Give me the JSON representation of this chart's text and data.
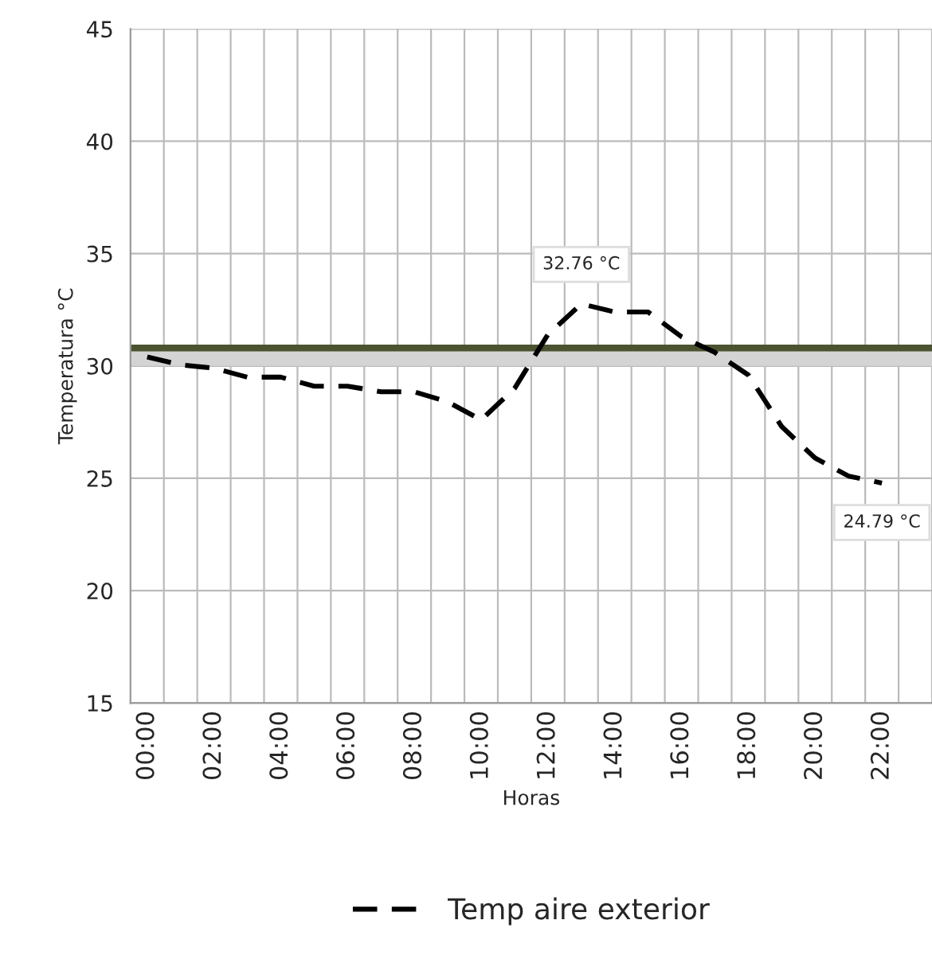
{
  "chart_data": {
    "type": "line",
    "xlabel": "Horas",
    "ylabel": "Temperatura °C",
    "categories": [
      "00:00",
      null,
      "02:00",
      null,
      "04:00",
      null,
      "06:00",
      null,
      "08:00",
      null,
      "10:00",
      null,
      "12:00",
      null,
      "14:00",
      null,
      "16:00",
      null,
      "18:00",
      null,
      "20:00",
      null,
      "22:00",
      null
    ],
    "series": [
      {
        "name": "Temp aire exterior",
        "color": "#000000",
        "values": [
          30.4,
          30.05,
          29.9,
          29.5,
          29.5,
          29.1,
          29.1,
          28.85,
          28.85,
          28.4,
          27.6,
          29.0,
          31.4,
          32.76,
          32.4,
          32.4,
          31.3,
          30.6,
          29.6,
          27.3,
          25.9,
          25.1,
          24.79,
          null
        ],
        "value_labels": [
          null,
          null,
          null,
          null,
          null,
          null,
          null,
          null,
          null,
          null,
          null,
          null,
          null,
          "32.76 °C",
          null,
          null,
          null,
          null,
          null,
          null,
          null,
          null,
          "24.79 °C",
          null
        ]
      }
    ],
    "ylim": [
      15,
      45
    ],
    "yticks": [
      15,
      20,
      25,
      30,
      35,
      40,
      45
    ],
    "ref_lines": [
      {
        "axis": "y",
        "value": 30.8,
        "color": "#4a5230"
      }
    ],
    "bands": [
      {
        "axis": "y",
        "from": 30,
        "to": 30.8,
        "color": "#d4d4d4"
      }
    ],
    "grid": true,
    "legend": "bottom",
    "line_style": "dashed",
    "marker": "none"
  }
}
